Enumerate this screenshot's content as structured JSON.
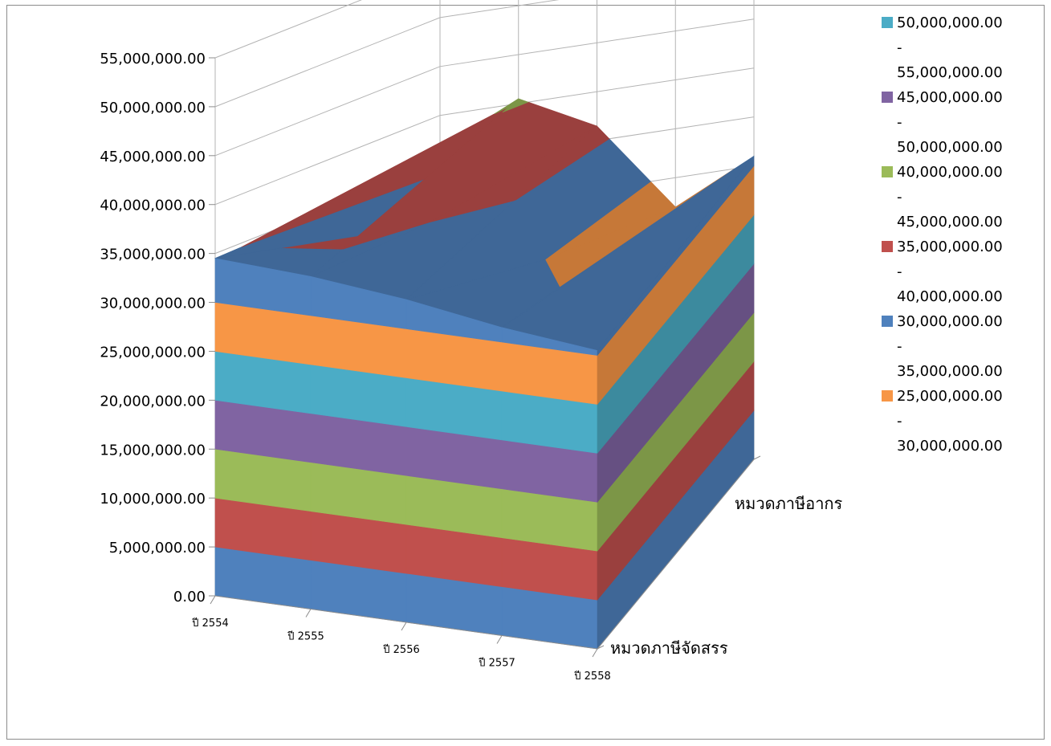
{
  "chart_data": {
    "type": "surface-3d",
    "title": "",
    "series": [
      {
        "name": "หมวดภาษีจัดสรร",
        "values": [
          34500000,
          34000000,
          33000000,
          31500000,
          30500000
        ]
      },
      {
        "name": "หมวดภาษีอากร",
        "values": [
          29000000,
          40500000,
          36500000,
          27000000,
          31000000
        ]
      }
    ],
    "categories": [
      "ปี 2554",
      "ปี 2555",
      "ปี 2556",
      "ปี 2557",
      "ปี 2558"
    ],
    "z_ticks": [
      "0.00",
      "5,000,000.00",
      "10,000,000.00",
      "15,000,000.00",
      "20,000,000.00",
      "25,000,000.00",
      "30,000,000.00",
      "35,000,000.00",
      "40,000,000.00",
      "45,000,000.00",
      "50,000,000.00",
      "55,000,000.00"
    ],
    "zlim": [
      0,
      55000000
    ],
    "band_step": 5000000,
    "band_colors": [
      "#4F81BD",
      "#C0504D",
      "#9BBB59",
      "#8064A2",
      "#4BACC6",
      "#F79646",
      "#4F81BD",
      "#C0504D",
      "#9BBB59",
      "#8064A2",
      "#4BACC6"
    ],
    "legend": {
      "position": "right",
      "items": [
        {
          "color": "#4BACC6",
          "lines": [
            "50,000,000.00",
            "-",
            "55,000,000.00"
          ]
        },
        {
          "color": "#8064A2",
          "lines": [
            "45,000,000.00",
            "-",
            "50,000,000.00"
          ]
        },
        {
          "color": "#9BBB59",
          "lines": [
            "40,000,000.00",
            "-",
            "45,000,000.00"
          ]
        },
        {
          "color": "#C0504D",
          "lines": [
            "35,000,000.00",
            "-",
            "40,000,000.00"
          ]
        },
        {
          "color": "#4F81BD",
          "lines": [
            "30,000,000.00",
            "-",
            "35,000,000.00"
          ]
        },
        {
          "color": "#F79646",
          "lines": [
            "25,000,000.00",
            "-",
            "30,000,000.00"
          ]
        }
      ]
    },
    "gridlines": true
  }
}
